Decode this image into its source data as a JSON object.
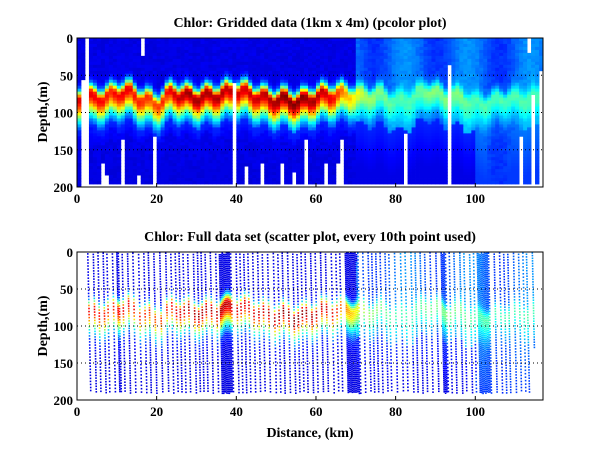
{
  "chart_data": [
    {
      "type": "heatmap",
      "title": "Chlor: Gridded data (1km x 4m) (pcolor plot)",
      "xlabel": "",
      "ylabel": "Depth,(m)",
      "xlim": [
        0,
        117
      ],
      "ylim": [
        200,
        0
      ],
      "xticks": [
        "0",
        "20",
        "40",
        "60",
        "80",
        "100"
      ],
      "yticks": [
        "0",
        "50",
        "100",
        "150",
        "200"
      ],
      "grid": "dotted ticks at right/bottom",
      "colormap": "jet",
      "cell_size": {
        "distance_km": 1,
        "depth_m": 4
      },
      "profile_distance_km": [
        0,
        4,
        8,
        12,
        16,
        20,
        24,
        28,
        32,
        36,
        40,
        44,
        48,
        52,
        56,
        60,
        64,
        68,
        72,
        76,
        80,
        84,
        88,
        92,
        96,
        100,
        104,
        108,
        112,
        116
      ],
      "chl_max_depth_m": [
        80,
        80,
        78,
        70,
        80,
        88,
        72,
        78,
        78,
        75,
        70,
        75,
        82,
        82,
        85,
        78,
        75,
        75,
        78,
        75,
        85,
        80,
        68,
        78,
        78,
        88,
        85,
        80,
        80,
        80
      ],
      "chl_max_intensity": [
        0.9,
        0.9,
        0.85,
        0.9,
        0.85,
        0.8,
        0.9,
        0.97,
        0.97,
        0.95,
        0.92,
        0.92,
        0.95,
        1.0,
        1.0,
        0.95,
        0.9,
        0.7,
        0.55,
        0.5,
        0.45,
        0.45,
        0.5,
        0.5,
        0.5,
        0.45,
        0.45,
        0.45,
        0.45,
        0.45
      ],
      "max_data_depth_m": 193,
      "missing_columns": [
        {
          "distance_km": 1,
          "from_m": 55,
          "to_m": 200
        },
        {
          "distance_km": 2,
          "from_m": 0,
          "to_m": 200
        },
        {
          "distance_km": 6,
          "from_m": 170,
          "to_m": 200
        },
        {
          "distance_km": 7,
          "from_m": 185,
          "to_m": 200
        },
        {
          "distance_km": 11,
          "from_m": 138,
          "to_m": 200
        },
        {
          "distance_km": 15,
          "from_m": 185,
          "to_m": 200
        },
        {
          "distance_km": 16,
          "from_m": 0,
          "to_m": 25
        },
        {
          "distance_km": 19,
          "from_m": 133,
          "to_m": 200
        },
        {
          "distance_km": 39,
          "from_m": 62,
          "to_m": 200
        },
        {
          "distance_km": 42,
          "from_m": 173,
          "to_m": 200
        },
        {
          "distance_km": 46,
          "from_m": 170,
          "to_m": 200
        },
        {
          "distance_km": 51,
          "from_m": 170,
          "to_m": 200
        },
        {
          "distance_km": 54,
          "from_m": 182,
          "to_m": 200
        },
        {
          "distance_km": 57,
          "from_m": 138,
          "to_m": 200
        },
        {
          "distance_km": 62,
          "from_m": 170,
          "to_m": 200
        },
        {
          "distance_km": 65,
          "from_m": 170,
          "to_m": 200
        },
        {
          "distance_km": 66,
          "from_m": 138,
          "to_m": 200
        },
        {
          "distance_km": 82,
          "from_m": 130,
          "to_m": 200
        },
        {
          "distance_km": 93,
          "from_m": 38,
          "to_m": 200
        },
        {
          "distance_km": 111,
          "from_m": 133,
          "to_m": 200
        },
        {
          "distance_km": 113,
          "from_m": 0,
          "to_m": 20
        },
        {
          "distance_km": 114,
          "from_m": 78,
          "to_m": 200
        },
        {
          "distance_km": 116,
          "from_m": 45,
          "to_m": 200
        }
      ]
    },
    {
      "type": "scatter",
      "title": "Chlor: Full data set (scatter plot, every 10th point used)",
      "xlabel": "Distance, (km)",
      "ylabel": "Depth,(m)",
      "xlim": [
        0,
        117
      ],
      "ylim": [
        200,
        0
      ],
      "xticks": [
        "0",
        "20",
        "40",
        "60",
        "80",
        "100"
      ],
      "yticks": [
        "0",
        "50",
        "100",
        "150",
        "200"
      ],
      "colormap": "jet",
      "max_data_depth_m": 190,
      "dense_cast_bands_km": [
        [
          9,
          10
        ],
        [
          35,
          38
        ],
        [
          66,
          70
        ],
        [
          90,
          92
        ],
        [
          100,
          103
        ]
      ],
      "note_source": "same chlorophyll field as gridded plot"
    }
  ]
}
